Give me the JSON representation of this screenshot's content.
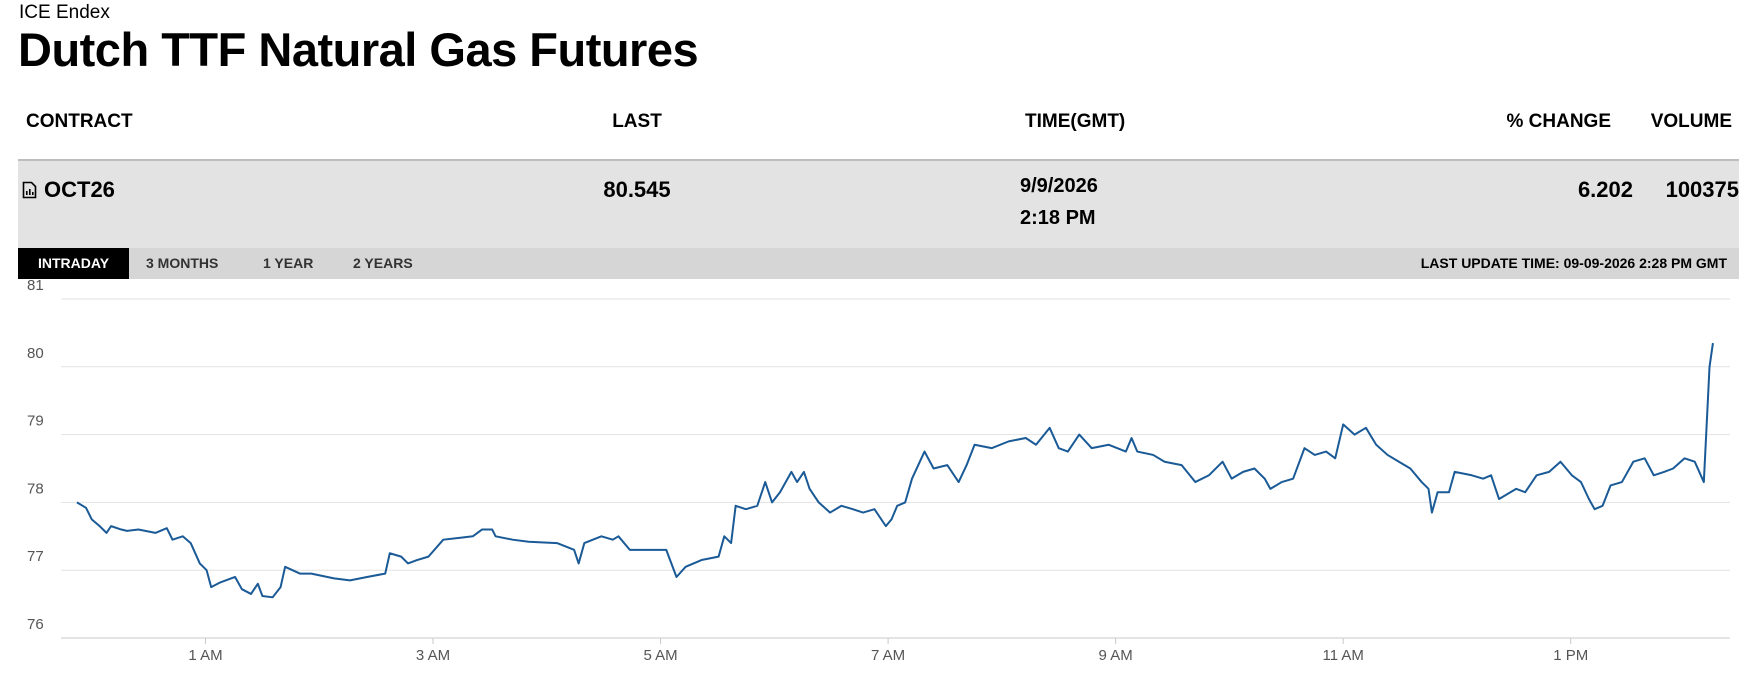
{
  "header": {
    "source": "ICE Endex",
    "title": "Dutch TTF Natural Gas Futures"
  },
  "table": {
    "columns": [
      "CONTRACT",
      "LAST",
      "TIME(GMT)",
      "% CHANGE",
      "VOLUME"
    ],
    "rows": [
      [
        "OCT26",
        "80.545",
        [
          "9/9/2026",
          "2:18 PM"
        ],
        "6.202",
        "100375"
      ]
    ]
  },
  "tabs": [
    "INTRADAY",
    "3 MONTHS",
    "1 YEAR",
    "2 YEARS"
  ],
  "last_update": "LAST UPDATE TIME: 09-09-2026 2:28 PM GMT",
  "chart_data": {
    "type": "line",
    "color": "#1a5a96",
    "grid": true,
    "xlim": [
      -0.27,
      14.4
    ],
    "ylim": [
      76,
      81
    ],
    "xticks": [
      {
        "value": 1,
        "label": "1 AM"
      },
      {
        "value": 3,
        "label": "3 AM"
      },
      {
        "value": 5,
        "label": "5 AM"
      },
      {
        "value": 7,
        "label": "7 AM"
      },
      {
        "value": 9,
        "label": "9 AM"
      },
      {
        "value": 11,
        "label": "11 AM"
      },
      {
        "value": 13,
        "label": "1 PM"
      }
    ],
    "yticks": [
      76,
      77,
      78,
      79,
      80,
      81
    ],
    "x": [
      -0.13,
      -0.05,
      0,
      0.07,
      0.13,
      0.17,
      0.26,
      0.31,
      0.41,
      0.56,
      0.66,
      0.71,
      0.8,
      0.87,
      0.95,
      1.01,
      1.05,
      1.13,
      1.26,
      1.32,
      1.4,
      1.46,
      1.5,
      1.59,
      1.66,
      1.7,
      1.83,
      1.93,
      2.13,
      2.27,
      2.42,
      2.58,
      2.62,
      2.72,
      2.78,
      2.86,
      2.96,
      3.09,
      3.25,
      3.35,
      3.43,
      3.52,
      3.55,
      3.7,
      3.84,
      4.09,
      4.24,
      4.28,
      4.33,
      4.48,
      4.58,
      4.63,
      4.73,
      4.87,
      5.05,
      5.14,
      5.22,
      5.36,
      5.51,
      5.56,
      5.62,
      5.66,
      5.75,
      5.85,
      5.92,
      5.98,
      6.05,
      6.15,
      6.2,
      6.26,
      6.31,
      6.39,
      6.49,
      6.59,
      6.69,
      6.78,
      6.88,
      6.98,
      7.03,
      7.08,
      7.15,
      7.21,
      7.32,
      7.4,
      7.52,
      7.62,
      7.69,
      7.76,
      7.91,
      8.06,
      8.21,
      8.3,
      8.42,
      8.5,
      8.58,
      8.68,
      8.79,
      8.94,
      9.09,
      9.14,
      9.19,
      9.33,
      9.43,
      9.58,
      9.7,
      9.82,
      9.94,
      10.02,
      10.12,
      10.22,
      10.31,
      10.36,
      10.46,
      10.56,
      10.66,
      10.75,
      10.85,
      10.93,
      11,
      11.1,
      11.2,
      11.29,
      11.39,
      11.49,
      11.59,
      11.69,
      11.75,
      11.78,
      11.83,
      11.93,
      11.98,
      12.13,
      12.23,
      12.3,
      12.37,
      12.52,
      12.6,
      12.7,
      12.81,
      12.91,
      13.01,
      13.09,
      13.16,
      13.21,
      13.28,
      13.35,
      13.45,
      13.55,
      13.65,
      13.73,
      13.82,
      13.9,
      14,
      14.09,
      14.17,
      14.22,
      14.25
    ],
    "values": [
      78,
      77.92,
      77.75,
      77.65,
      77.55,
      77.65,
      77.6,
      77.58,
      77.6,
      77.55,
      77.62,
      77.45,
      77.5,
      77.4,
      77.1,
      77,
      76.75,
      76.82,
      76.9,
      76.72,
      76.65,
      76.8,
      76.62,
      76.6,
      76.75,
      77.05,
      76.95,
      76.95,
      76.88,
      76.85,
      76.9,
      76.95,
      77.25,
      77.2,
      77.1,
      77.15,
      77.2,
      77.45,
      77.48,
      77.5,
      77.6,
      77.6,
      77.5,
      77.45,
      77.42,
      77.4,
      77.3,
      77.1,
      77.4,
      77.5,
      77.45,
      77.5,
      77.3,
      77.3,
      77.3,
      76.9,
      77.05,
      77.15,
      77.2,
      77.5,
      77.4,
      77.95,
      77.9,
      77.95,
      78.3,
      78,
      78.15,
      78.45,
      78.3,
      78.45,
      78.2,
      78,
      77.85,
      77.95,
      77.9,
      77.85,
      77.9,
      77.65,
      77.75,
      77.95,
      78,
      78.35,
      78.75,
      78.5,
      78.55,
      78.3,
      78.55,
      78.85,
      78.8,
      78.9,
      78.95,
      78.85,
      79.1,
      78.8,
      78.75,
      79,
      78.8,
      78.85,
      78.75,
      78.95,
      78.75,
      78.7,
      78.6,
      78.55,
      78.3,
      78.4,
      78.6,
      78.35,
      78.45,
      78.5,
      78.35,
      78.2,
      78.3,
      78.35,
      78.8,
      78.7,
      78.75,
      78.65,
      79.15,
      79,
      79.1,
      78.85,
      78.7,
      78.6,
      78.5,
      78.3,
      78.2,
      77.85,
      78.15,
      78.15,
      78.45,
      78.4,
      78.35,
      78.4,
      78.05,
      78.2,
      78.15,
      78.4,
      78.45,
      78.6,
      78.4,
      78.3,
      78.05,
      77.9,
      77.95,
      78.25,
      78.3,
      78.6,
      78.65,
      78.4,
      78.45,
      78.5,
      78.65,
      78.6,
      78.3,
      80,
      80.35
    ]
  }
}
